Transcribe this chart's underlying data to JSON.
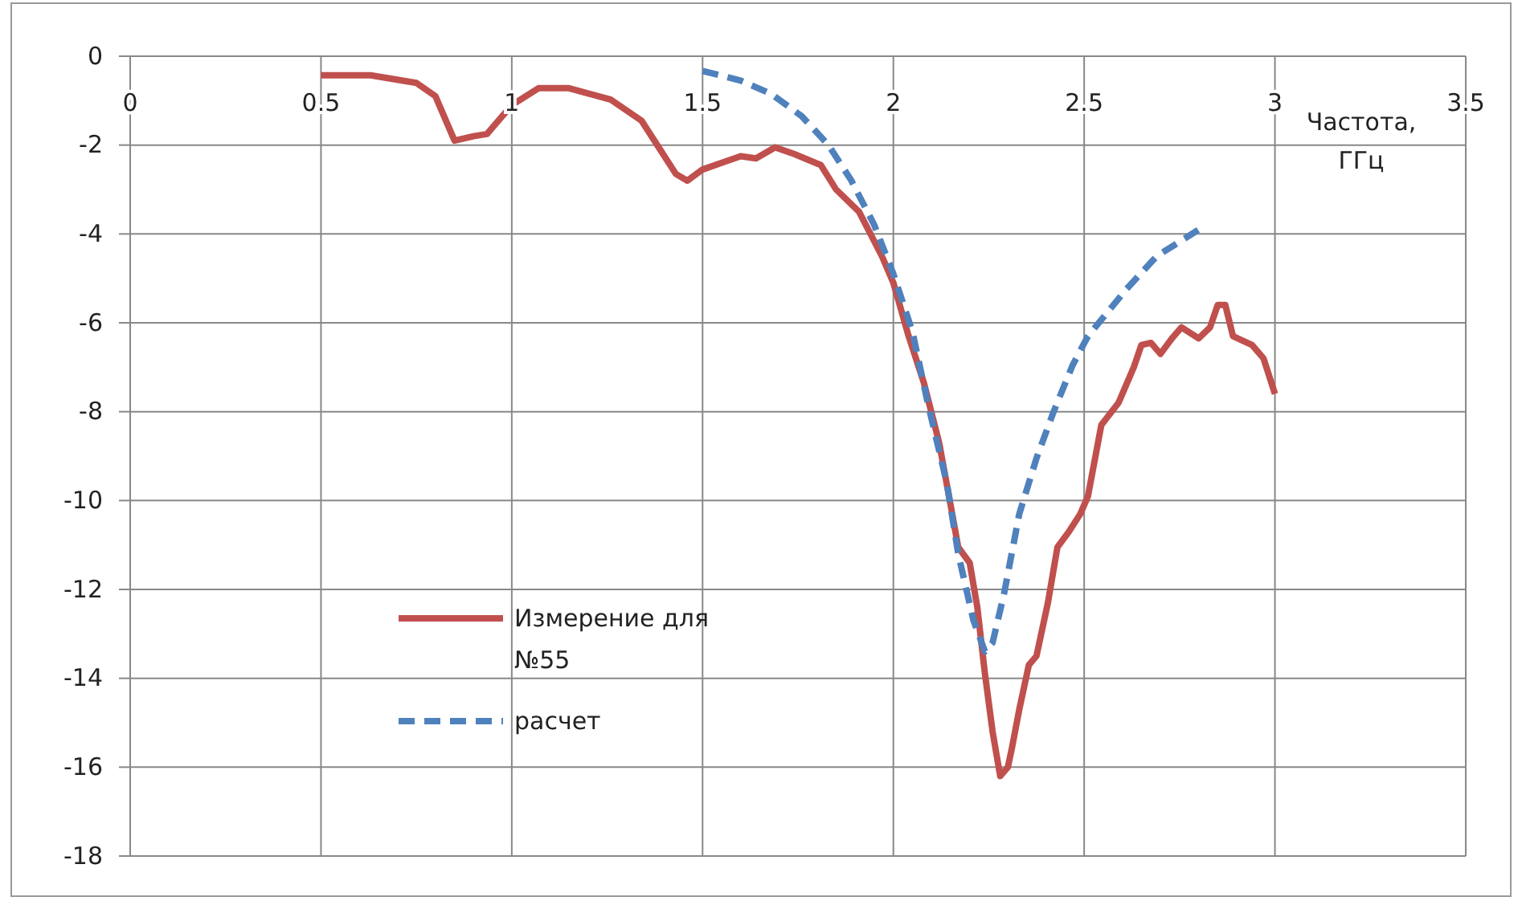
{
  "chart_data": {
    "type": "line",
    "xlabel": "Частота, ГГц",
    "xlim": [
      0,
      3.5
    ],
    "xticks": [
      0,
      0.5,
      1,
      1.5,
      2,
      2.5,
      3,
      3.5
    ],
    "ylim": [
      -18,
      0
    ],
    "yticks": [
      -18,
      -16,
      -14,
      -12,
      -10,
      -8,
      -6,
      -4,
      -2,
      0
    ],
    "grid": true,
    "legend": "bottom left",
    "series": [
      {
        "name": "Измерение для №55",
        "color": "#c0504d",
        "line_style": "solid",
        "x": [
          0.5,
          0.63,
          0.75,
          0.8,
          0.85,
          0.9,
          0.935,
          1.0,
          1.07,
          1.15,
          1.26,
          1.34,
          1.43,
          1.46,
          1.5,
          1.55,
          1.6,
          1.64,
          1.69,
          1.74,
          1.81,
          1.85,
          1.91,
          1.97,
          2.0,
          2.04,
          2.08,
          2.12,
          2.15,
          2.17,
          2.2,
          2.22,
          2.24,
          2.26,
          2.28,
          2.3,
          2.31,
          2.33,
          2.355,
          2.375,
          2.405,
          2.43,
          2.46,
          2.49,
          2.51,
          2.545,
          2.59,
          2.63,
          2.65,
          2.675,
          2.7,
          2.73,
          2.755,
          2.8,
          2.83,
          2.85,
          2.87,
          2.89,
          2.94,
          2.97,
          3.0
        ],
        "values": [
          -0.43,
          -0.43,
          -0.6,
          -0.9,
          -1.9,
          -1.8,
          -1.75,
          -1.1,
          -0.72,
          -0.72,
          -0.98,
          -1.45,
          -2.65,
          -2.8,
          -2.55,
          -2.4,
          -2.25,
          -2.3,
          -2.05,
          -2.2,
          -2.45,
          -3.0,
          -3.5,
          -4.5,
          -5.1,
          -6.3,
          -7.35,
          -8.7,
          -10.1,
          -11.05,
          -11.4,
          -12.4,
          -13.9,
          -15.2,
          -16.2,
          -16.0,
          -15.6,
          -14.7,
          -13.7,
          -13.5,
          -12.3,
          -11.05,
          -10.7,
          -10.3,
          -9.9,
          -8.3,
          -7.8,
          -7.0,
          -6.5,
          -6.45,
          -6.7,
          -6.35,
          -6.1,
          -6.35,
          -6.1,
          -5.6,
          -5.6,
          -6.3,
          -6.5,
          -6.8,
          -7.6
        ]
      },
      {
        "name": "расчет",
        "color": "#4f81bd",
        "line_style": "dashed",
        "x": [
          1.5,
          1.6,
          1.68,
          1.76,
          1.83,
          1.89,
          1.95,
          2.0,
          2.05,
          2.09,
          2.14,
          2.17,
          2.21,
          2.24,
          2.26,
          2.29,
          2.33,
          2.375,
          2.42,
          2.47,
          2.51,
          2.61,
          2.69,
          2.755,
          2.81
        ],
        "values": [
          -0.33,
          -0.55,
          -0.85,
          -1.35,
          -2.0,
          -2.8,
          -3.8,
          -4.9,
          -6.2,
          -7.8,
          -9.6,
          -11.2,
          -12.7,
          -13.4,
          -13.2,
          -12.1,
          -10.3,
          -9.05,
          -8.0,
          -6.95,
          -6.3,
          -5.25,
          -4.5,
          -4.15,
          -3.85
        ]
      }
    ]
  }
}
